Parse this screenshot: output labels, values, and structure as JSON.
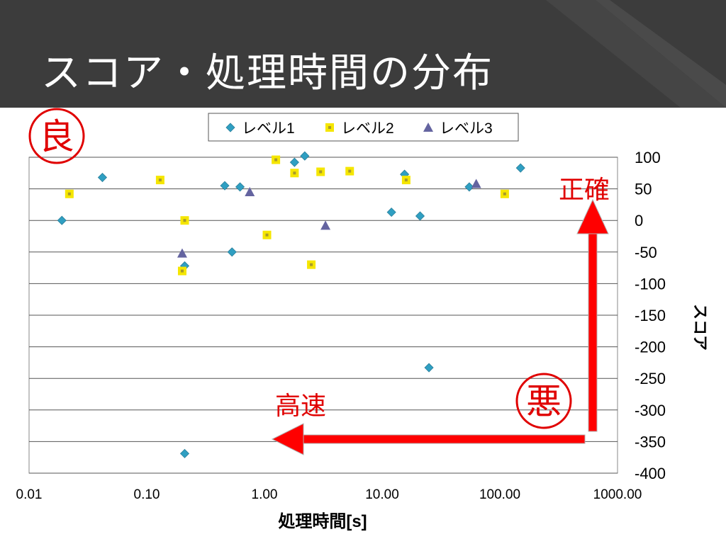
{
  "slide": {
    "title": "スコア・処理時間の分布"
  },
  "annotations": {
    "good_mark": "良",
    "bad_mark": "悪",
    "accuracy_label": "正確",
    "speed_label": "高速",
    "arrow_color": "#ff0000",
    "mark_color": "#e00000"
  },
  "chart_data": {
    "type": "scatter",
    "title": "",
    "xlabel": "処理時間[s]",
    "ylabel": "スコア",
    "x_scale": "log",
    "xlim": [
      0.01,
      1000
    ],
    "ylim": [
      -400,
      100
    ],
    "x_ticks": [
      "0.01",
      "0.10",
      "1.00",
      "10.00",
      "100.00",
      "1000.00"
    ],
    "y_ticks": [
      "100",
      "50",
      "0",
      "-50",
      "-100",
      "-150",
      "-200",
      "-250",
      "-300",
      "-350",
      "-400"
    ],
    "grid": "horizontal",
    "legend_position": "top",
    "series": [
      {
        "name": "レベル1",
        "marker": "diamond",
        "color": "#2f9fc2",
        "points": [
          [
            0.019,
            0
          ],
          [
            0.042,
            68
          ],
          [
            0.21,
            -72
          ],
          [
            0.21,
            -369
          ],
          [
            0.46,
            55
          ],
          [
            0.53,
            -50
          ],
          [
            0.62,
            53
          ],
          [
            1.8,
            92
          ],
          [
            2.2,
            102
          ],
          [
            12,
            13
          ],
          [
            15.5,
            73
          ],
          [
            21,
            7
          ],
          [
            25,
            -233
          ],
          [
            55,
            53
          ],
          [
            150,
            83
          ]
        ]
      },
      {
        "name": "レベル2",
        "marker": "square",
        "color": "#f5e600",
        "points": [
          [
            0.022,
            42
          ],
          [
            0.13,
            64
          ],
          [
            0.2,
            -80
          ],
          [
            0.21,
            0
          ],
          [
            1.05,
            -23
          ],
          [
            1.25,
            96
          ],
          [
            1.8,
            75
          ],
          [
            2.5,
            -70
          ],
          [
            3,
            77
          ],
          [
            5.3,
            78
          ],
          [
            16,
            64
          ],
          [
            110,
            42
          ]
        ]
      },
      {
        "name": "レベル3",
        "marker": "triangle",
        "color": "#6464a0",
        "points": [
          [
            0.2,
            -52
          ],
          [
            0.75,
            45
          ],
          [
            3.3,
            -8
          ],
          [
            63,
            58
          ]
        ]
      }
    ]
  }
}
